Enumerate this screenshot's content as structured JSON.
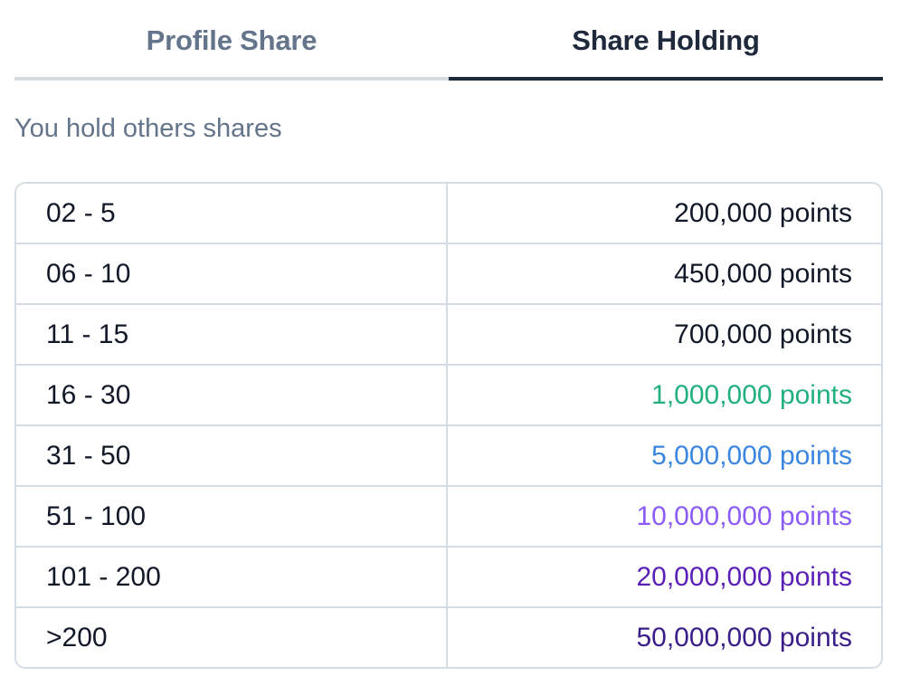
{
  "tabs": [
    {
      "label": "Profile Share",
      "active": false
    },
    {
      "label": "Share Holding",
      "active": true
    }
  ],
  "subtitle": "You hold others shares",
  "rows": [
    {
      "range": "02 - 5",
      "points": "200,000 points",
      "color": "#111827"
    },
    {
      "range": "06 - 10",
      "points": "450,000 points",
      "color": "#111827"
    },
    {
      "range": "11 - 15",
      "points": "700,000 points",
      "color": "#111827"
    },
    {
      "range": "16 - 30",
      "points": "1,000,000 points",
      "color": "#22b07d"
    },
    {
      "range": "31 - 50",
      "points": "5,000,000 points",
      "color": "#3b86e0"
    },
    {
      "range": "51 - 100",
      "points": "10,000,000 points",
      "color": "#8b5cf6"
    },
    {
      "range": "101 - 200",
      "points": "20,000,000 points",
      "color": "#5b21b6"
    },
    {
      "range": ">200",
      "points": "50,000,000 points",
      "color": "#3b1d8a"
    }
  ]
}
